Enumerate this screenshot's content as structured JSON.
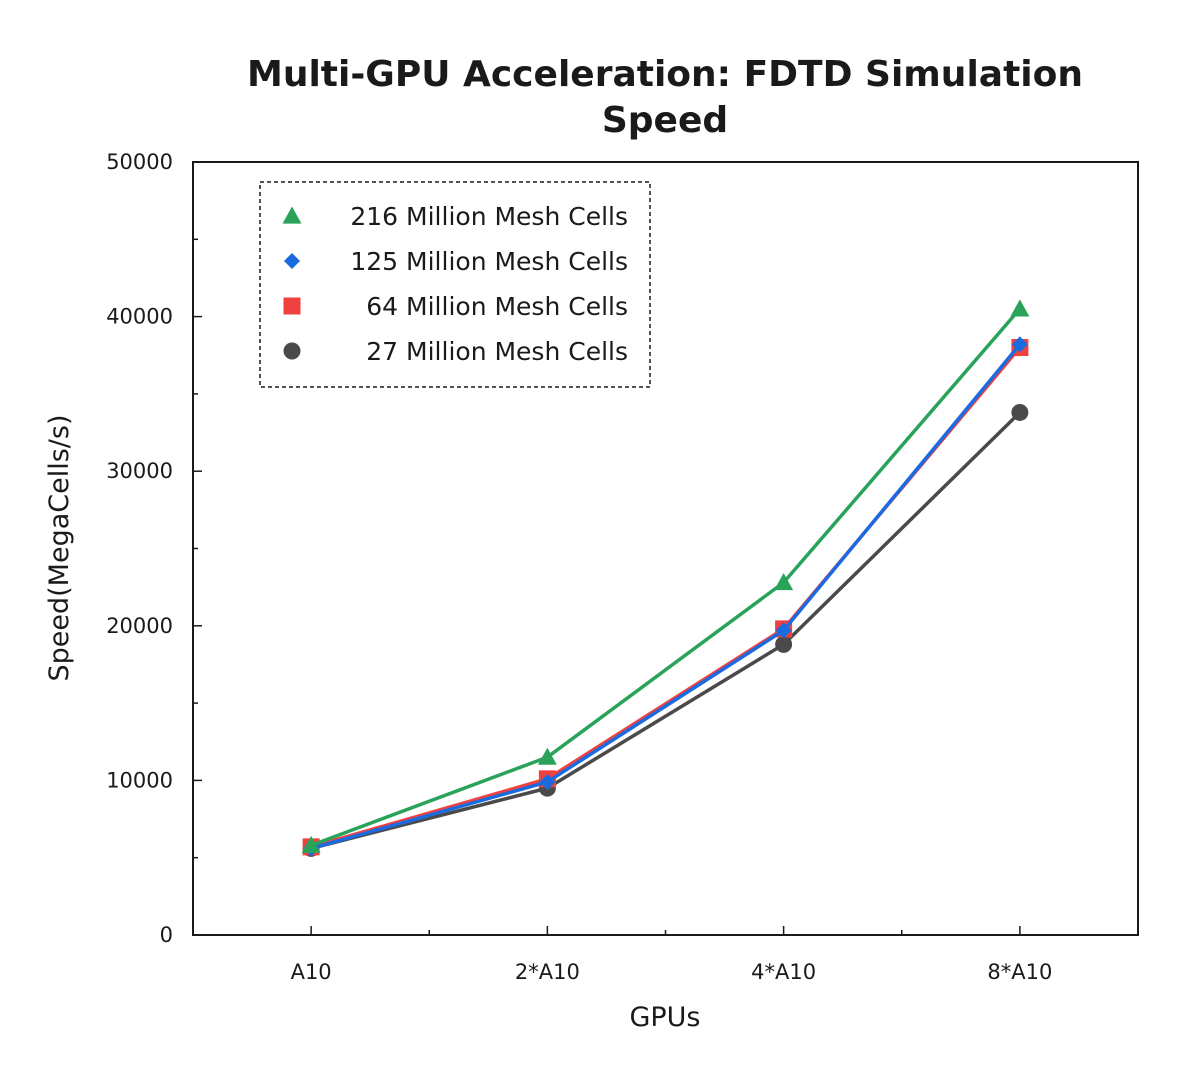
{
  "chart_data": {
    "type": "line",
    "title_lines": [
      "Multi-GPU Acceleration: FDTD Simulation",
      "Speed"
    ],
    "xlabel": "GPUs",
    "ylabel": "Speed(MegaCells/s)",
    "categories": [
      "A10",
      "2*A10",
      "4*A10",
      "8*A10"
    ],
    "ylim": [
      0,
      50000
    ],
    "y_ticks": [
      0,
      10000,
      20000,
      30000,
      40000,
      50000
    ],
    "y_tick_labels": [
      "0",
      "10000",
      "20000",
      "30000",
      "40000",
      "50000"
    ],
    "grid": false,
    "legend_position": "top-left",
    "series": [
      {
        "name": "27 Million Mesh Cells",
        "values": [
          5600,
          9500,
          18800,
          33800
        ],
        "color": "#4a4a4a",
        "marker": "circle"
      },
      {
        "name": "64 Million Mesh Cells",
        "values": [
          5700,
          10100,
          19800,
          38000
        ],
        "color": "#f04040",
        "marker": "square"
      },
      {
        "name": "125 Million Mesh Cells",
        "values": [
          5600,
          9900,
          19700,
          38200
        ],
        "color": "#1a6ae0",
        "marker": "diamond"
      },
      {
        "name": "216 Million Mesh Cells",
        "values": [
          5800,
          11500,
          22800,
          40500
        ],
        "color": "#2aa35a",
        "marker": "triangle"
      }
    ],
    "legend_order": [
      3,
      2,
      1,
      0
    ]
  }
}
